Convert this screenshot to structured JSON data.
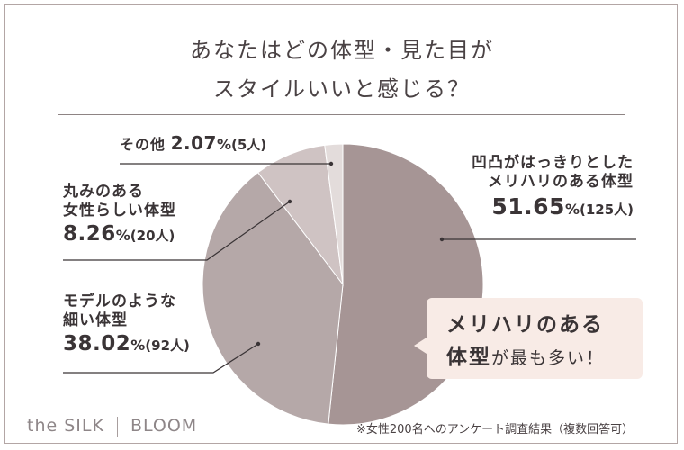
{
  "title": {
    "line1": "あなたはどの体型・見た目が",
    "line2": "スタイルいいと感じる？"
  },
  "chart_data": {
    "type": "pie",
    "start": "12 o'clock, clockwise",
    "slices": [
      {
        "name": "凹凸がはっきりとした\nメリハリのある体型",
        "name_lines": [
          "凹凸がはっきりとした",
          "メリハリのある体型"
        ],
        "percent": 51.65,
        "percent_text": "51.65",
        "count_text": "(125人)",
        "color": "#a69595"
      },
      {
        "name_lines": [
          "モデルのような",
          "細い体型"
        ],
        "percent": 38.02,
        "percent_text": "38.02",
        "count_text": "(92人)",
        "color": "#b5a8a8"
      },
      {
        "name_lines": [
          "丸みのある",
          "女性らしい体型"
        ],
        "percent": 8.26,
        "percent_text": "8.26",
        "count_text": "(20人)",
        "color": "#cfc3c3"
      },
      {
        "name_lines": [
          "その他"
        ],
        "percent": 2.07,
        "percent_text": "2.07",
        "count_text": "(5人)",
        "color": "#e3dcdb"
      }
    ],
    "percent_unit": "%"
  },
  "callout": {
    "line1": "メリハリのある",
    "line2_bold": "体型",
    "line2_rest": "が最も多い！"
  },
  "footer": {
    "brand_left": "the SILK",
    "brand_right": "BLOOM",
    "note": "※女性200名へのアンケート調査結果（複数回答可）"
  }
}
